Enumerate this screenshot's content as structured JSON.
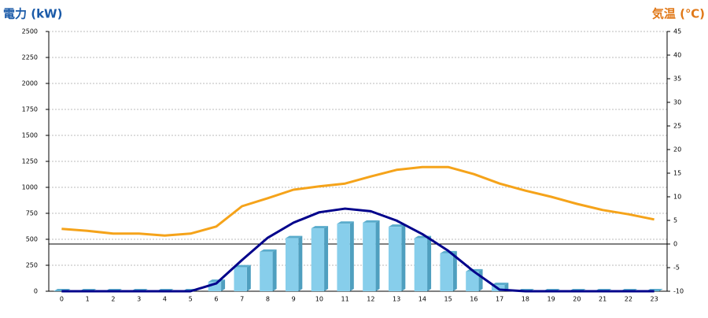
{
  "chart_data": {
    "type": "bar-line",
    "title_left": "電力 (kW)",
    "title_right": "気温 (℃)",
    "categories": [
      "0",
      "1",
      "2",
      "3",
      "4",
      "5",
      "6",
      "7",
      "8",
      "9",
      "10",
      "11",
      "12",
      "13",
      "14",
      "15",
      "16",
      "17",
      "18",
      "19",
      "20",
      "21",
      "22",
      "23"
    ],
    "ylim": [
      0,
      2500
    ],
    "yticks": [
      0,
      250,
      500,
      750,
      1000,
      1250,
      1500,
      1750,
      2000,
      2250,
      2500
    ],
    "y2lim": [
      -10,
      45
    ],
    "y2ticks": [
      -10,
      -5,
      0,
      5,
      10,
      15,
      20,
      25,
      30,
      35,
      40,
      45
    ],
    "grid": true,
    "series": [
      {
        "type": "bar",
        "color": "#87ceeb",
        "values": [
          0,
          0,
          0,
          0,
          0,
          0,
          90,
          230,
          380,
          510,
          605,
          650,
          660,
          620,
          510,
          365,
          190,
          60,
          0,
          0,
          0,
          0,
          0,
          0
        ]
      },
      {
        "type": "line",
        "color": "#00008b",
        "values": [
          0,
          0,
          0,
          0,
          0,
          0,
          75,
          300,
          515,
          660,
          760,
          795,
          770,
          680,
          550,
          390,
          190,
          15,
          0,
          0,
          0,
          0,
          0,
          0
        ]
      },
      {
        "type": "line",
        "color": "#f5a31a",
        "axis": "y2",
        "values": [
          3.2,
          2.8,
          2.2,
          2.2,
          1.8,
          2.2,
          3.7,
          8.0,
          9.7,
          11.5,
          12.2,
          12.8,
          14.3,
          15.7,
          16.3,
          16.3,
          14.8,
          12.8,
          11.3,
          10.0,
          8.5,
          7.2,
          6.3,
          5.2
        ]
      }
    ]
  }
}
